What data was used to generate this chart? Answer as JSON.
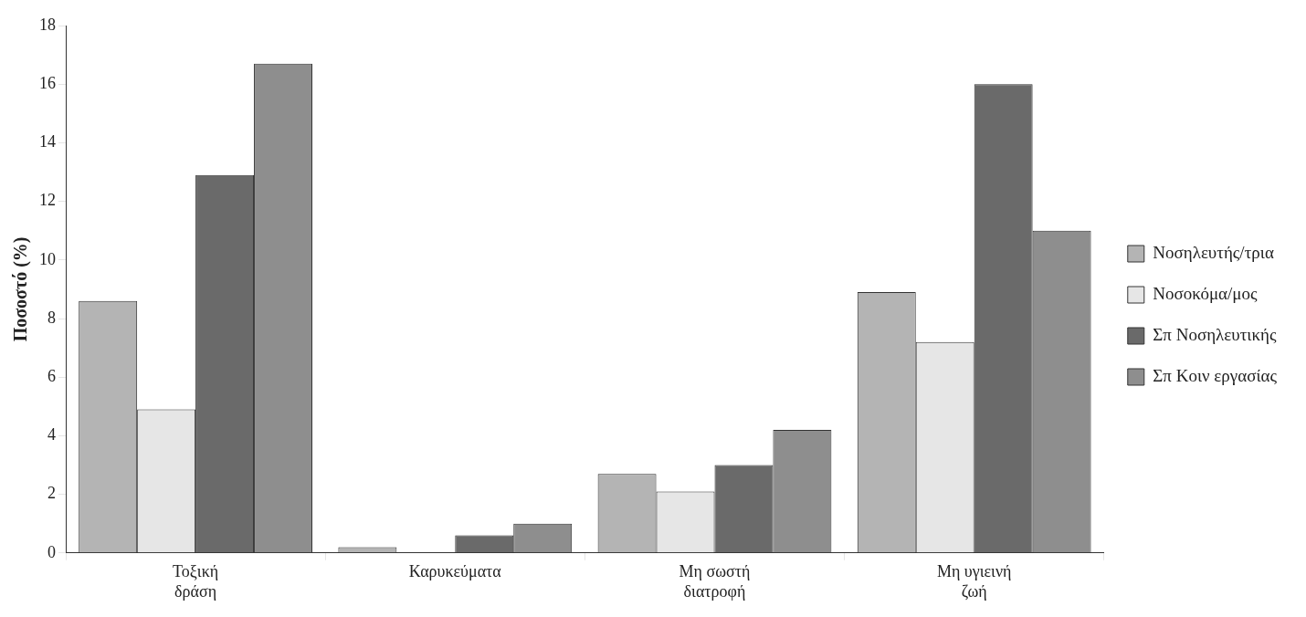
{
  "chart_data": {
    "type": "bar",
    "ylabel": "Ποσοστό (%)",
    "categories": [
      "Τοξική δράση",
      "Καρυκεύματα",
      "Μη σωστή διατροφή",
      "Μη υγιεινή ζωή"
    ],
    "series": [
      {
        "name": "Νοσηλευτής/τρια",
        "color": "#b4b4b4",
        "values": [
          8.6,
          0.2,
          2.7,
          8.9
        ]
      },
      {
        "name": "Νοσοκόμα/μος",
        "color": "#e6e6e6",
        "values": [
          4.9,
          0,
          2.1,
          7.2
        ]
      },
      {
        "name": "Σπ Νοσηλευτικής",
        "color": "#6a6a6a",
        "values": [
          12.9,
          0.6,
          3.0,
          16.0
        ]
      },
      {
        "name": "Σπ Κοιν εργασίας",
        "color": "#8e8e8e",
        "values": [
          16.7,
          1.0,
          4.2,
          11.0
        ]
      }
    ],
    "ylim": [
      0,
      18
    ],
    "yticks": [
      0,
      2,
      4,
      6,
      8,
      10,
      12,
      14,
      16,
      18
    ],
    "grid": false,
    "legend": "right"
  }
}
